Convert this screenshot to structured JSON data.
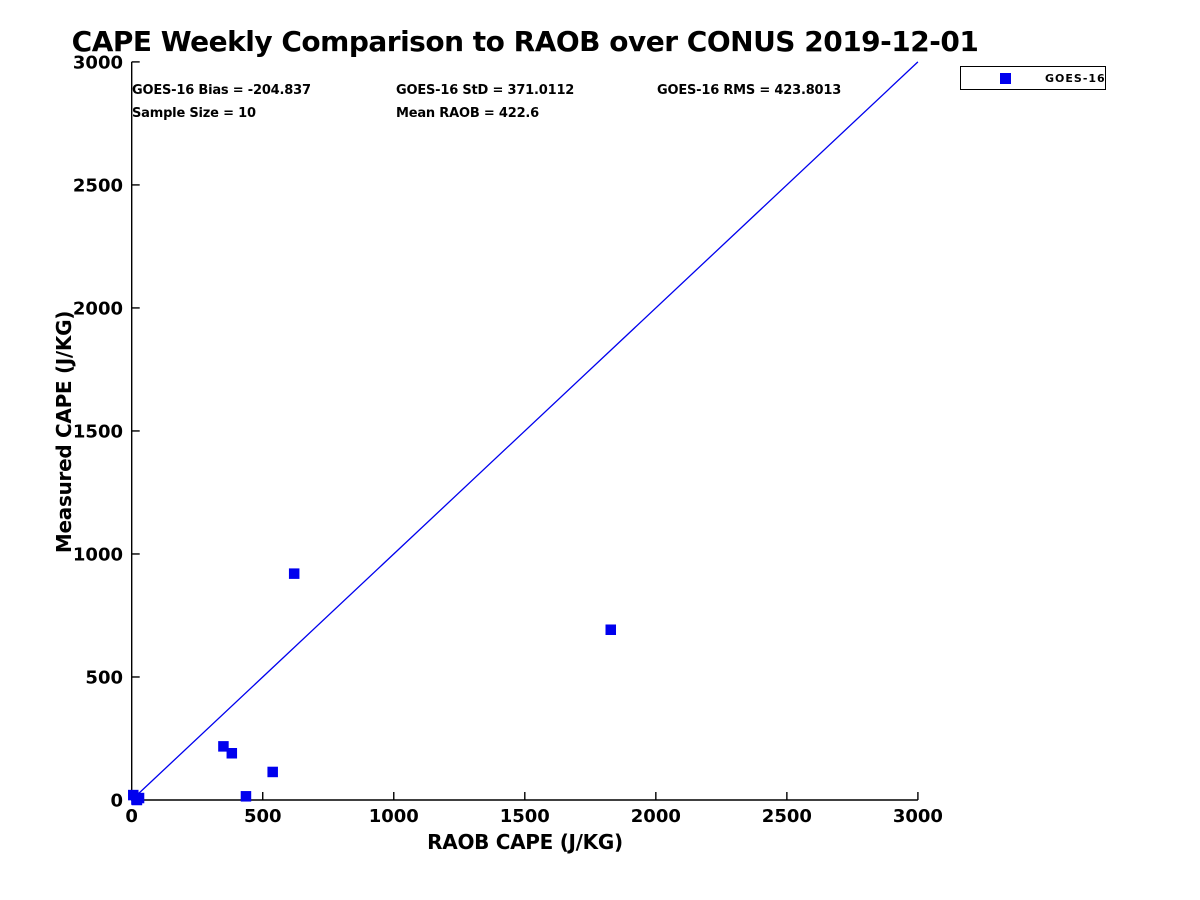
{
  "title": "CAPE Weekly Comparison to RAOB over CONUS 2019-12-01",
  "stats": {
    "bias": "GOES-16 Bias = -204.837",
    "std": "GOES-16 StD = 371.0112",
    "rms": "GOES-16 RMS = 423.8013",
    "sample_size": "Sample Size = 10",
    "mean_raob": "Mean RAOB = 422.6"
  },
  "legend": {
    "label": "GOES-16",
    "marker_color": "#0000EE"
  },
  "colors": {
    "series_blue": "#0000EE",
    "axis_black": "#000000",
    "text_black": "#000000",
    "background": "#ffffff"
  },
  "chart_data": {
    "type": "scatter",
    "title": "CAPE Weekly Comparison to RAOB over CONUS 2019-12-01",
    "xlabel": "RAOB CAPE (J/KG)",
    "ylabel": "Measured CAPE (J/KG)",
    "xlim": [
      0,
      3000
    ],
    "ylim": [
      0,
      3000
    ],
    "xticks": [
      0,
      500,
      1000,
      1500,
      2000,
      2500,
      3000
    ],
    "yticks": [
      0,
      500,
      1000,
      1500,
      2000,
      2500,
      3000
    ],
    "grid": false,
    "legend_position": "outside-top-right",
    "series": [
      {
        "name": "GOES-16",
        "marker": "square",
        "color": "#0000EE",
        "points": [
          [
            6,
            20
          ],
          [
            18,
            2
          ],
          [
            20,
            0
          ],
          [
            28,
            8
          ],
          [
            350,
            218
          ],
          [
            382,
            190
          ],
          [
            436,
            15
          ],
          [
            538,
            114
          ],
          [
            620,
            920
          ],
          [
            1828,
            692
          ]
        ]
      }
    ],
    "identity_line": {
      "from": [
        0,
        0
      ],
      "to": [
        3000,
        3000
      ],
      "color": "#0000EE"
    },
    "annotations": [
      "GOES-16 Bias = -204.837",
      "GOES-16 StD = 371.0112",
      "GOES-16 RMS = 423.8013",
      "Sample Size = 10",
      "Mean RAOB = 422.6"
    ]
  }
}
